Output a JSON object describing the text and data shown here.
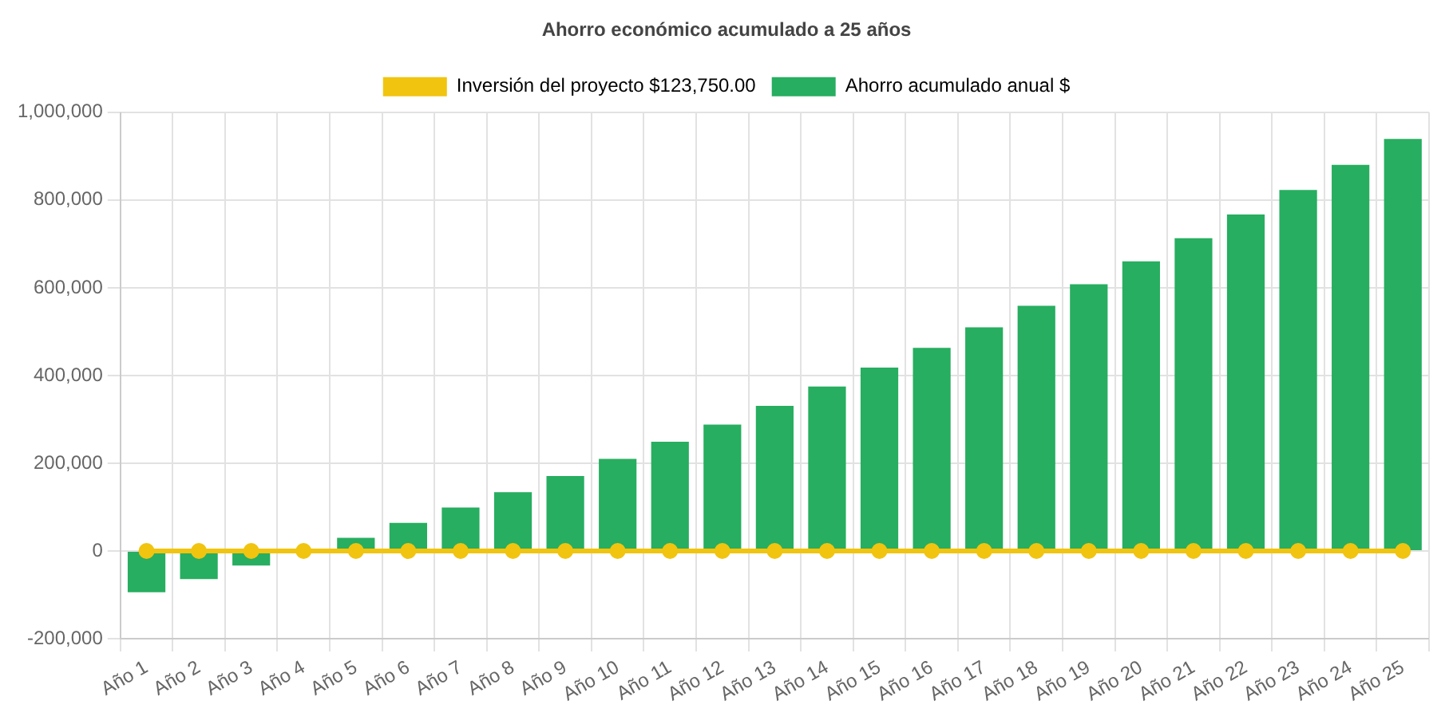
{
  "chart_data": {
    "type": "bar",
    "title": "Ahorro económico acumulado a 25 años",
    "categories": [
      "Año 1",
      "Año 2",
      "Año 3",
      "Año 4",
      "Año 5",
      "Año 6",
      "Año 7",
      "Año 8",
      "Año 9",
      "Año 10",
      "Año 11",
      "Año 12",
      "Año 13",
      "Año 14",
      "Año 15",
      "Año 16",
      "Año 17",
      "Año 18",
      "Año 19",
      "Año 20",
      "Año 21",
      "Año 22",
      "Año 23",
      "Año 24",
      "Año 25"
    ],
    "series": [
      {
        "name": "Inversión del proyecto $123,750.00",
        "type": "line",
        "color": "#f1c40f",
        "values": [
          0,
          0,
          0,
          0,
          0,
          0,
          0,
          0,
          0,
          0,
          0,
          0,
          0,
          0,
          0,
          0,
          0,
          0,
          0,
          0,
          0,
          0,
          0,
          0,
          0
        ]
      },
      {
        "name": "Ahorro acumulado anual $",
        "color": "#27ae60",
        "values": [
          -94000,
          -64000,
          -33000,
          0,
          30000,
          64000,
          99000,
          134000,
          171000,
          210000,
          249000,
          288000,
          331000,
          375000,
          418000,
          463000,
          510000,
          559000,
          608000,
          660000,
          713000,
          767000,
          823000,
          880000,
          939000
        ]
      }
    ],
    "ylim": [
      -200000,
      1000000
    ],
    "yticks": [
      {
        "value": -200000,
        "label": "-200,000"
      },
      0,
      {
        "value": 200000,
        "label": "200,000"
      },
      {
        "value": 400000,
        "label": "400,000"
      },
      {
        "value": 600000,
        "label": "600,000"
      },
      {
        "value": 800000,
        "label": "800,000"
      },
      {
        "value": 1000000,
        "label": "1,000,000"
      }
    ],
    "grid": true,
    "legend": "top",
    "marker": "circle",
    "line_style": "solid"
  }
}
